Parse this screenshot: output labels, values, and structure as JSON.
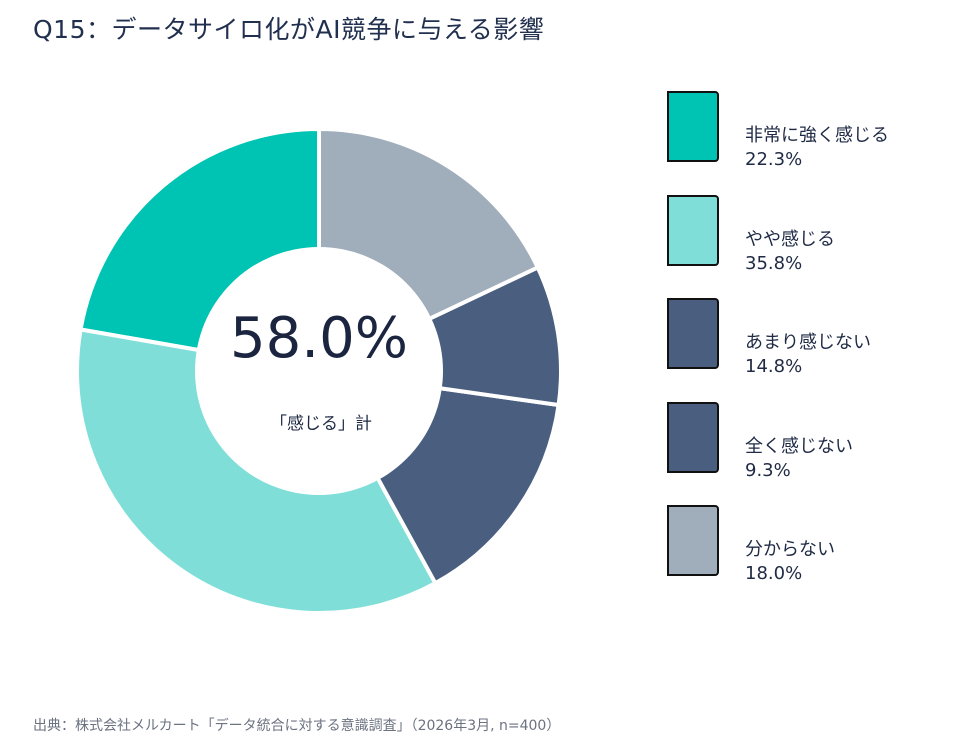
{
  "title": "Q15：データサイロ化がAI競争に与える影響",
  "source": "出典：株式会社メルカート「データ統合に対する意識調査」（2026年3月, n=400）",
  "chart_data": {
    "type": "pie",
    "title": "Q15：データサイロ化がAI競争に与える影響",
    "center_value": "58.0%",
    "center_label": "「感じる」計",
    "slices": [
      {
        "label": "非常に強く感じる",
        "value": 22.3,
        "value_label": "22.3%",
        "color": "#00c4b3"
      },
      {
        "label": "やや感じる",
        "value": 35.8,
        "value_label": "35.8%",
        "color": "#7fdfd8"
      },
      {
        "label": "あまり感じない",
        "value": 14.8,
        "value_label": "14.8%",
        "color": "#4a5e80"
      },
      {
        "label": "全く感じない",
        "value": 9.3,
        "value_label": "9.3%",
        "color": "#4a5e80"
      },
      {
        "label": "分からない",
        "value": 18.0,
        "value_label": "18.0%",
        "color": "#a0adba"
      }
    ]
  }
}
